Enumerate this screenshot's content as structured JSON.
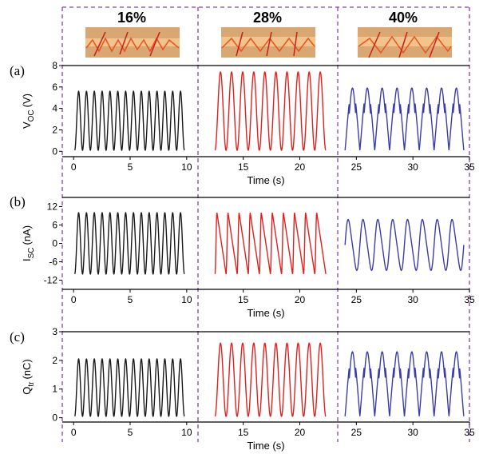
{
  "chart_data": [
    {
      "type": "line",
      "panel_label": "(a)",
      "ylabel_main": "V",
      "ylabel_sub": "OC",
      "ylabel_unit": "(V)",
      "xlabel": "Time (s)",
      "xlim": [
        -1,
        35
      ],
      "ylim": [
        -0.5,
        8
      ],
      "yticks": [
        0,
        2,
        4,
        6,
        8
      ],
      "ytick_labels": [
        "0",
        "2",
        "4",
        "6",
        "8"
      ],
      "xticks": [
        0,
        5,
        10,
        15,
        20,
        25,
        30,
        35
      ],
      "xtick_labels": [
        "0",
        "5",
        "10",
        "15",
        "20",
        "25",
        "30",
        "35"
      ],
      "series": [
        {
          "name": "16%",
          "color": "#1a1a1a",
          "x_start": 0.1,
          "x_end": 9.8,
          "cycles": 14,
          "min": 0.1,
          "max": 5.6,
          "shape": "sine"
        },
        {
          "name": "28%",
          "color": "#e0201c",
          "x_start": 12.5,
          "x_end": 22.3,
          "cycles": 10,
          "min": 0.1,
          "max": 7.4,
          "shape": "sine"
        },
        {
          "name": "40%",
          "color": "#3a3da8",
          "x_start": 24.0,
          "x_end": 34.5,
          "cycles": 8,
          "min": 0.1,
          "max": 5.9,
          "shape": "double-peak"
        }
      ]
    },
    {
      "type": "line",
      "panel_label": "(b)",
      "ylabel_main": "I",
      "ylabel_sub": "SC",
      "ylabel_unit": "(nA)",
      "xlabel": "Time (s)",
      "xlim": [
        -1,
        35
      ],
      "ylim": [
        -15,
        15
      ],
      "yticks": [
        -12,
        -6,
        0,
        6,
        12
      ],
      "ytick_labels": [
        "-12",
        "-6",
        "0",
        "6",
        "12"
      ],
      "xticks": [
        0,
        5,
        10,
        15,
        20,
        25,
        30,
        35
      ],
      "xtick_labels": [
        "0",
        "5",
        "10",
        "15",
        "20",
        "25",
        "30",
        "35"
      ],
      "series": [
        {
          "name": "16%",
          "color": "#1a1a1a",
          "x_start": 0.1,
          "x_end": 9.8,
          "cycles": 14,
          "min": -10,
          "max": 10,
          "shape": "sine"
        },
        {
          "name": "28%",
          "color": "#e0201c",
          "x_start": 12.5,
          "x_end": 22.3,
          "cycles": 10,
          "min": -10,
          "max": 10,
          "shape": "sawtooth"
        },
        {
          "name": "40%",
          "color": "#3a3da8",
          "x_start": 24.0,
          "x_end": 34.5,
          "cycles": 8,
          "min": -10,
          "max": 9,
          "shape": "double-peak-ac"
        }
      ]
    },
    {
      "type": "line",
      "panel_label": "(c)",
      "ylabel_main": "Q",
      "ylabel_sub": "tr",
      "ylabel_unit": "(nC)",
      "xlabel": "Time (s)",
      "xlim": [
        -1,
        35
      ],
      "ylim": [
        -0.15,
        3
      ],
      "yticks": [
        0,
        1,
        2,
        3
      ],
      "ytick_labels": [
        "0",
        "1",
        "2",
        "3"
      ],
      "xticks": [
        0,
        5,
        10,
        15,
        20,
        25,
        30,
        35
      ],
      "xtick_labels": [
        "0",
        "5",
        "10",
        "15",
        "20",
        "25",
        "30",
        "35"
      ],
      "series": [
        {
          "name": "16%",
          "color": "#1a1a1a",
          "x_start": 0.1,
          "x_end": 9.8,
          "cycles": 14,
          "min": 0.05,
          "max": 2.05,
          "shape": "sine"
        },
        {
          "name": "28%",
          "color": "#e0201c",
          "x_start": 12.5,
          "x_end": 22.3,
          "cycles": 10,
          "min": 0.05,
          "max": 2.6,
          "shape": "sine"
        },
        {
          "name": "40%",
          "color": "#3a3da8",
          "x_start": 24.0,
          "x_end": 34.5,
          "cycles": 8,
          "min": 0.05,
          "max": 2.3,
          "shape": "double-peak"
        }
      ]
    }
  ],
  "strain_labels": [
    "16%",
    "28%",
    "40%"
  ],
  "colors": {
    "divider": "#8b3fae",
    "axis": "#000000",
    "photo_base": "#c9a06a",
    "photo_accent": "#e8531f"
  }
}
